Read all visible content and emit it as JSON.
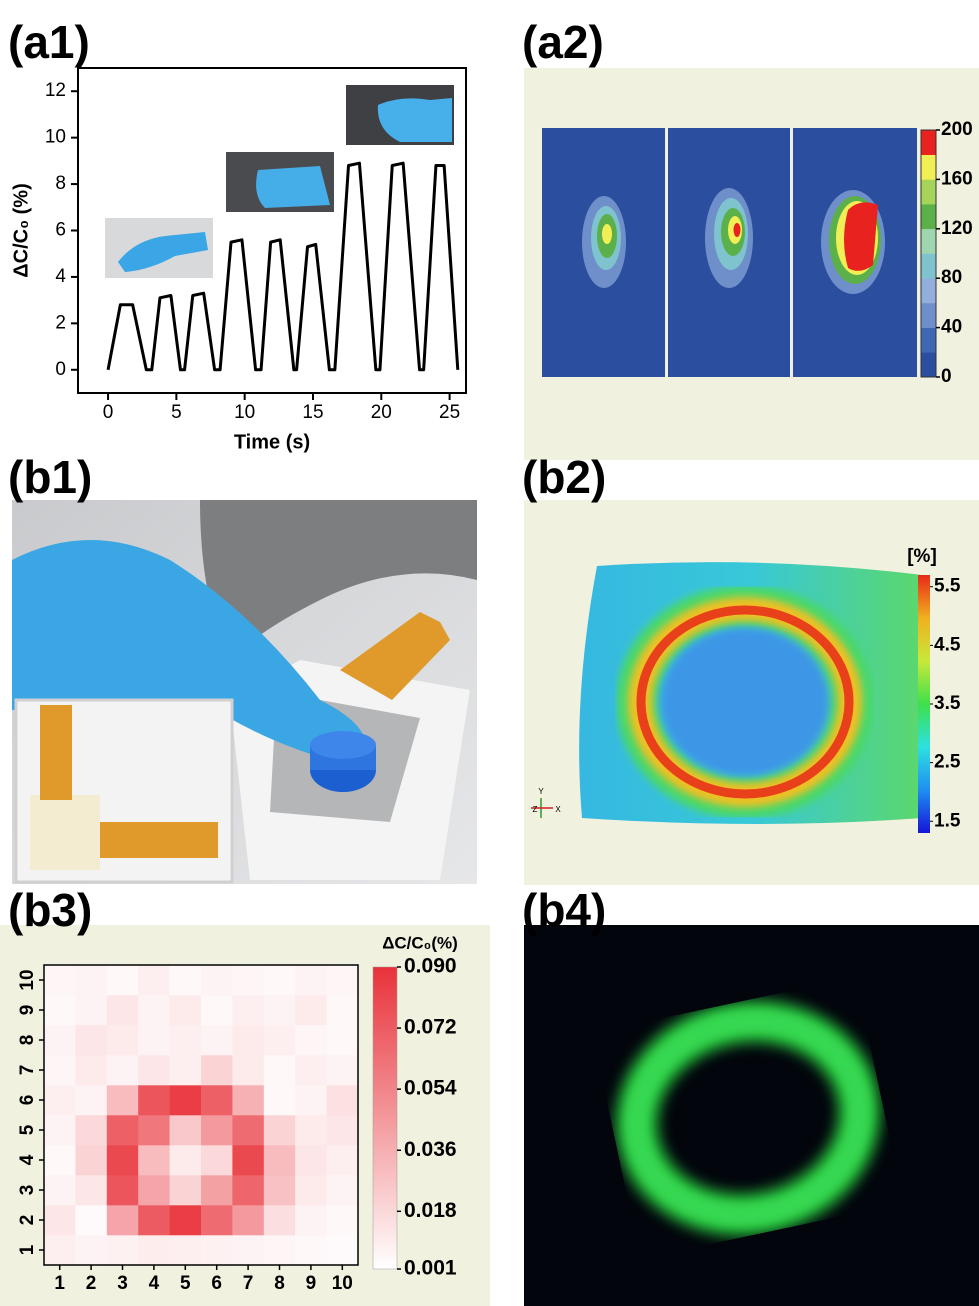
{
  "panel_labels": [
    "(a1)",
    "(a2)",
    "(b1)",
    "(b2)",
    "(b3)",
    "(b4)"
  ],
  "chart_data": [
    {
      "type": "line",
      "xlabel": "Time (s)",
      "ylabel": "ΔC/C₀ (%)",
      "color": "#000000",
      "x": [
        0,
        0.9,
        1.8,
        2.8,
        3.2,
        3.8,
        4.6,
        5.3,
        5.6,
        6.2,
        7.0,
        7.8,
        8.2,
        9.0,
        9.8,
        10.8,
        11.2,
        11.9,
        12.6,
        13.6,
        13.8,
        14.6,
        15.2,
        16.2,
        16.6,
        17.6,
        18.4,
        19.6,
        19.9,
        20.8,
        21.6,
        22.8,
        23.1,
        24.0,
        24.6,
        25.6
      ],
      "values": [
        0,
        2.8,
        2.8,
        0,
        0,
        3.1,
        3.2,
        0,
        0,
        3.2,
        3.3,
        0,
        0,
        5.5,
        5.6,
        0,
        0,
        5.5,
        5.6,
        0,
        0,
        5.3,
        5.4,
        0,
        0,
        8.8,
        8.9,
        0,
        0,
        8.8,
        8.9,
        0,
        0,
        8.8,
        8.8,
        0
      ],
      "xlim": [
        -2.2,
        26.2
      ],
      "ylim": [
        -1,
        13
      ],
      "xticks": [
        0,
        5,
        10,
        15,
        20,
        25
      ],
      "yticks": [
        0,
        2,
        4,
        6,
        8,
        10,
        12
      ]
    },
    {
      "type": "contour-map",
      "clim": [
        0,
        200
      ],
      "ticks": [
        0,
        40,
        80,
        120,
        160,
        200
      ],
      "colors": [
        "#2b4f9e",
        "#3f68b4",
        "#6f8fcb",
        "#93aedb",
        "#7fc3cf",
        "#9fd6b0",
        "#5cb04a",
        "#a6d45b",
        "#f2ee55",
        "#e8231f"
      ]
    },
    {
      "type": "surface-map",
      "title": "[%]",
      "clim": [
        1.3,
        5.7
      ],
      "ticks": [
        1.5,
        2.5,
        3.5,
        4.5,
        5.5
      ],
      "colors": [
        "#1414d8",
        "#1f8ff0",
        "#2ee0e0",
        "#3ee04a",
        "#c8e83a",
        "#f0b020",
        "#e82a18"
      ],
      "axis_labels": [
        "Y",
        "Z",
        "X"
      ]
    },
    {
      "type": "heatmap",
      "colorbar_title": "ΔC/C₀(%)",
      "x_categories": [
        1,
        2,
        3,
        4,
        5,
        6,
        7,
        8,
        9,
        10
      ],
      "y_categories": [
        1,
        2,
        3,
        4,
        5,
        6,
        7,
        8,
        9,
        10
      ],
      "z": [
        [
          0.008,
          0.006,
          0.007,
          0.009,
          0.008,
          0.007,
          0.006,
          0.005,
          0.004,
          0.003
        ],
        [
          0.012,
          0.003,
          0.04,
          0.072,
          0.085,
          0.065,
          0.045,
          0.015,
          0.006,
          0.004
        ],
        [
          0.006,
          0.012,
          0.075,
          0.04,
          0.02,
          0.042,
          0.068,
          0.028,
          0.01,
          0.006
        ],
        [
          0.004,
          0.02,
          0.08,
          0.03,
          0.01,
          0.018,
          0.08,
          0.03,
          0.012,
          0.008
        ],
        [
          0.006,
          0.018,
          0.07,
          0.06,
          0.025,
          0.045,
          0.065,
          0.02,
          0.01,
          0.012
        ],
        [
          0.008,
          0.006,
          0.03,
          0.075,
          0.085,
          0.07,
          0.035,
          0.004,
          0.006,
          0.014
        ],
        [
          0.005,
          0.01,
          0.006,
          0.012,
          0.008,
          0.02,
          0.01,
          0.004,
          0.008,
          0.006
        ],
        [
          0.006,
          0.012,
          0.01,
          0.006,
          0.008,
          0.006,
          0.01,
          0.008,
          0.005,
          0.004
        ],
        [
          0.004,
          0.006,
          0.012,
          0.006,
          0.01,
          0.004,
          0.008,
          0.006,
          0.01,
          0.004
        ],
        [
          0.005,
          0.006,
          0.004,
          0.008,
          0.004,
          0.006,
          0.005,
          0.004,
          0.006,
          0.005
        ]
      ],
      "clim": [
        0.001,
        0.09
      ],
      "colorbar_ticks": [
        0.001,
        0.018,
        0.036,
        0.054,
        0.072,
        {
          "value": 0.09,
          "label": "0.090"
        }
      ],
      "colors": [
        "#ffffff",
        "#e8323a"
      ]
    }
  ]
}
